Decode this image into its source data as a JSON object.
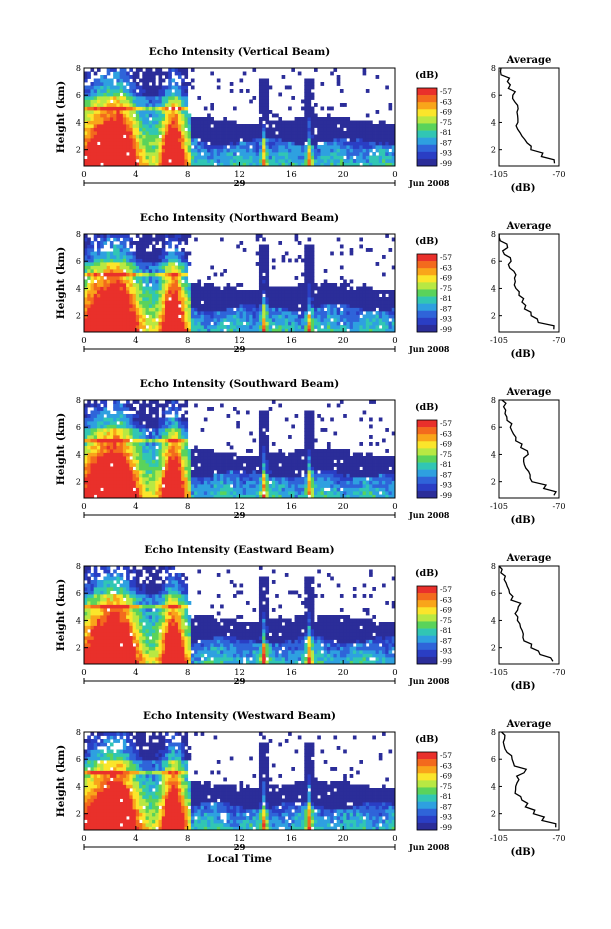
{
  "figure": {
    "colorbar_unit": "(dB)",
    "colorbar_ticks": [
      "-57",
      "-63",
      "-69",
      "-75",
      "-81",
      "-87",
      "-93",
      "-99"
    ],
    "colorbar_colors": [
      "#e9302b",
      "#f36a1d",
      "#f9a51a",
      "#fbe52b",
      "#b8e843",
      "#5ad35b",
      "#31c6b4",
      "#2ea0e0",
      "#2f64d9",
      "#2a3ec4",
      "#2b2d99"
    ],
    "x_tick_labels": [
      "0",
      "4",
      "8",
      "12",
      "16",
      "20",
      "0"
    ],
    "date_label": "29",
    "month_label": "Jun 2008",
    "xlabel_bottom": "Local Time",
    "ylabel": "Height (km)",
    "y_tick_labels": [
      "2",
      "4",
      "6",
      "8"
    ],
    "avg_title": "Average",
    "avg_x_ticks": [
      "-105",
      "-70"
    ],
    "avg_xlabel": "(dB)"
  },
  "chart_data": [
    {
      "type": "heatmap",
      "title": "Echo Intensity (Vertical Beam)",
      "xlabel": "",
      "ylabel": "Height (km)",
      "xlim": [
        0,
        24
      ],
      "ylim": [
        0.8,
        8
      ],
      "unit": "dB",
      "clim": [
        -99,
        -57
      ],
      "average_profile": {
        "title": "Average",
        "xlabel": "(dB)",
        "xlim": [
          -105,
          -70
        ],
        "height_km": [
          1,
          1.5,
          2,
          2.5,
          3,
          3.5,
          4,
          4.5,
          5,
          5.5,
          6,
          6.5,
          7,
          7.5,
          8
        ],
        "value_db": [
          -72,
          -80,
          -86,
          -89,
          -91,
          -93,
          -94,
          -95,
          -94,
          -96,
          -98,
          -100,
          -101,
          -103,
          -104
        ]
      }
    },
    {
      "type": "heatmap",
      "title": "Echo Intensity (Northward Beam)",
      "xlabel": "",
      "ylabel": "Height (km)",
      "xlim": [
        0,
        24
      ],
      "ylim": [
        0.8,
        8
      ],
      "unit": "dB",
      "clim": [
        -99,
        -57
      ],
      "average_profile": {
        "title": "Average",
        "xlabel": "(dB)",
        "xlim": [
          -105,
          -70
        ],
        "height_km": [
          1,
          1.5,
          2,
          2.5,
          3,
          3.5,
          4,
          4.5,
          5,
          5.5,
          6,
          6.5,
          7,
          7.5,
          8
        ],
        "value_db": [
          -73,
          -81,
          -87,
          -90,
          -92,
          -93,
          -95,
          -96,
          -96,
          -99,
          -99,
          -102,
          -101,
          -104,
          -104
        ]
      }
    },
    {
      "type": "heatmap",
      "title": "Echo Intensity (Southward Beam)",
      "xlabel": "",
      "ylabel": "Height (km)",
      "xlim": [
        0,
        24
      ],
      "ylim": [
        0.8,
        8
      ],
      "unit": "dB",
      "clim": [
        -99,
        -57
      ],
      "average_profile": {
        "title": "Average",
        "xlabel": "(dB)",
        "xlim": [
          -105,
          -70
        ],
        "height_km": [
          1,
          1.5,
          2,
          2.5,
          3,
          3.5,
          4,
          4.5,
          5,
          5.5,
          6,
          6.5,
          7,
          7.5,
          8
        ],
        "value_db": [
          -72,
          -80,
          -85,
          -88,
          -90,
          -91,
          -89,
          -93,
          -95,
          -97,
          -98,
          -100,
          -101,
          -103,
          -104
        ]
      }
    },
    {
      "type": "heatmap",
      "title": "Echo Intensity (Eastward Beam)",
      "xlabel": "",
      "ylabel": "Height (km)",
      "xlim": [
        0,
        24
      ],
      "ylim": [
        0.8,
        8
      ],
      "unit": "dB",
      "clim": [
        -99,
        -57
      ],
      "average_profile": {
        "title": "Average",
        "xlabel": "(dB)",
        "xlim": [
          -105,
          -70
        ],
        "height_km": [
          1,
          1.5,
          2,
          2.5,
          3,
          3.5,
          4,
          4.5,
          5,
          5.5,
          6,
          6.5,
          7,
          7.5,
          8
        ],
        "value_db": [
          -73,
          -81,
          -87,
          -90,
          -92,
          -93,
          -95,
          -96,
          -93,
          -97,
          -99,
          -100,
          -102,
          -103,
          -104
        ]
      }
    },
    {
      "type": "heatmap",
      "title": "Echo Intensity (Westward Beam)",
      "xlabel": "Local Time",
      "ylabel": "Height (km)",
      "xlim": [
        0,
        24
      ],
      "ylim": [
        0.8,
        8
      ],
      "unit": "dB",
      "clim": [
        -99,
        -57
      ],
      "average_profile": {
        "title": "Average",
        "xlabel": "(dB)",
        "xlim": [
          -105,
          -70
        ],
        "height_km": [
          1,
          1.5,
          2,
          2.5,
          3,
          3.5,
          4,
          4.5,
          5,
          5.5,
          6,
          6.5,
          7,
          7.5,
          8
        ],
        "value_db": [
          -72,
          -80,
          -86,
          -90,
          -92,
          -95,
          -96,
          -94,
          -90,
          -95,
          -98,
          -100,
          -101,
          -102,
          -104
        ]
      }
    }
  ]
}
